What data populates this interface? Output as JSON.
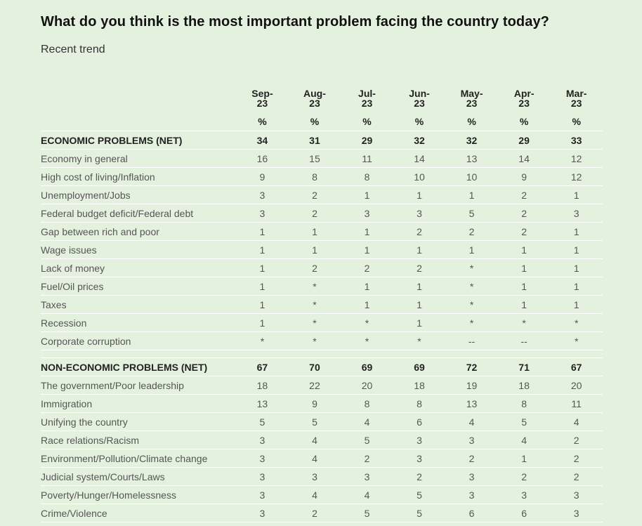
{
  "title": "What do you think is the most important problem facing the country today?",
  "subtitle": "Recent trend",
  "chart_data": {
    "type": "table",
    "columns": [
      {
        "l1": "Sep-",
        "l2": "23"
      },
      {
        "l1": "Aug-",
        "l2": "23"
      },
      {
        "l1": "Jul-",
        "l2": "23"
      },
      {
        "l1": "Jun-",
        "l2": "23"
      },
      {
        "l1": "May-",
        "l2": "23"
      },
      {
        "l1": "Apr-",
        "l2": "23"
      },
      {
        "l1": "Mar-",
        "l2": "23"
      }
    ],
    "unit": "%",
    "groups": [
      {
        "net": {
          "label": "ECONOMIC PROBLEMS (NET)",
          "values": [
            "34",
            "31",
            "29",
            "32",
            "32",
            "29",
            "33"
          ]
        },
        "rows": [
          {
            "label": "Economy in general",
            "values": [
              "16",
              "15",
              "11",
              "14",
              "13",
              "14",
              "12"
            ]
          },
          {
            "label": "High cost of living/Inflation",
            "values": [
              "9",
              "8",
              "8",
              "10",
              "10",
              "9",
              "12"
            ]
          },
          {
            "label": "Unemployment/Jobs",
            "values": [
              "3",
              "2",
              "1",
              "1",
              "1",
              "2",
              "1"
            ]
          },
          {
            "label": "Federal budget deficit/Federal debt",
            "values": [
              "3",
              "2",
              "3",
              "3",
              "5",
              "2",
              "3"
            ]
          },
          {
            "label": "Gap between rich and poor",
            "values": [
              "1",
              "1",
              "1",
              "2",
              "2",
              "2",
              "1"
            ]
          },
          {
            "label": "Wage issues",
            "values": [
              "1",
              "1",
              "1",
              "1",
              "1",
              "1",
              "1"
            ]
          },
          {
            "label": "Lack of money",
            "values": [
              "1",
              "2",
              "2",
              "2",
              "*",
              "1",
              "1"
            ]
          },
          {
            "label": "Fuel/Oil prices",
            "values": [
              "1",
              "*",
              "1",
              "1",
              "*",
              "1",
              "1"
            ]
          },
          {
            "label": "Taxes",
            "values": [
              "1",
              "*",
              "1",
              "1",
              "*",
              "1",
              "1"
            ]
          },
          {
            "label": "Recession",
            "values": [
              "1",
              "*",
              "*",
              "1",
              "*",
              "*",
              "*"
            ]
          },
          {
            "label": "Corporate corruption",
            "values": [
              "*",
              "*",
              "*",
              "*",
              "--",
              "--",
              "*"
            ]
          }
        ]
      },
      {
        "net": {
          "label": "NON-ECONOMIC PROBLEMS (NET)",
          "values": [
            "67",
            "70",
            "69",
            "69",
            "72",
            "71",
            "67"
          ]
        },
        "rows": [
          {
            "label": "The government/Poor leadership",
            "values": [
              "18",
              "22",
              "20",
              "18",
              "19",
              "18",
              "20"
            ]
          },
          {
            "label": "Immigration",
            "values": [
              "13",
              "9",
              "8",
              "8",
              "13",
              "8",
              "11"
            ]
          },
          {
            "label": "Unifying the country",
            "values": [
              "5",
              "5",
              "4",
              "6",
              "4",
              "5",
              "4"
            ]
          },
          {
            "label": "Race relations/Racism",
            "values": [
              "3",
              "4",
              "5",
              "3",
              "3",
              "4",
              "2"
            ]
          },
          {
            "label": "Environment/Pollution/Climate change",
            "values": [
              "3",
              "4",
              "2",
              "3",
              "2",
              "1",
              "2"
            ]
          },
          {
            "label": "Judicial system/Courts/Laws",
            "values": [
              "3",
              "3",
              "3",
              "2",
              "3",
              "2",
              "2"
            ]
          },
          {
            "label": "Poverty/Hunger/Homelessness",
            "values": [
              "3",
              "4",
              "4",
              "5",
              "3",
              "3",
              "3"
            ]
          },
          {
            "label": "Crime/Violence",
            "values": [
              "3",
              "2",
              "5",
              "5",
              "6",
              "6",
              "3"
            ]
          }
        ]
      }
    ]
  }
}
